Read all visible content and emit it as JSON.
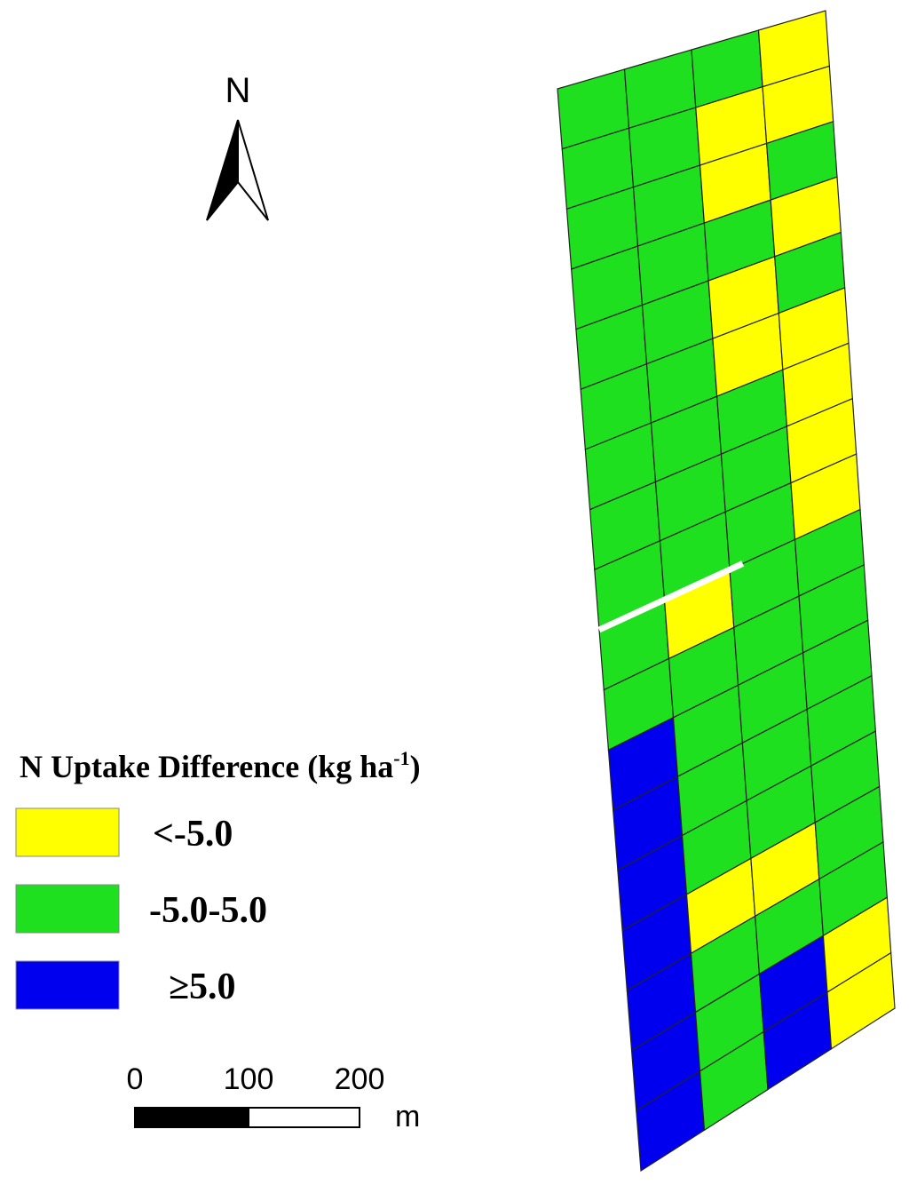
{
  "north_arrow": {
    "label": "N"
  },
  "legend": {
    "title_main": "N Uptake Difference (kg ha",
    "title_sup": "-1",
    "title_end": ")",
    "items": [
      {
        "label": "<-5.0"
      },
      {
        "label": "-5.0-5.0"
      },
      {
        "label": "≥5.0"
      }
    ]
  },
  "scale_bar": {
    "ticks": [
      "0",
      "100",
      "200"
    ],
    "unit": "m"
  }
}
